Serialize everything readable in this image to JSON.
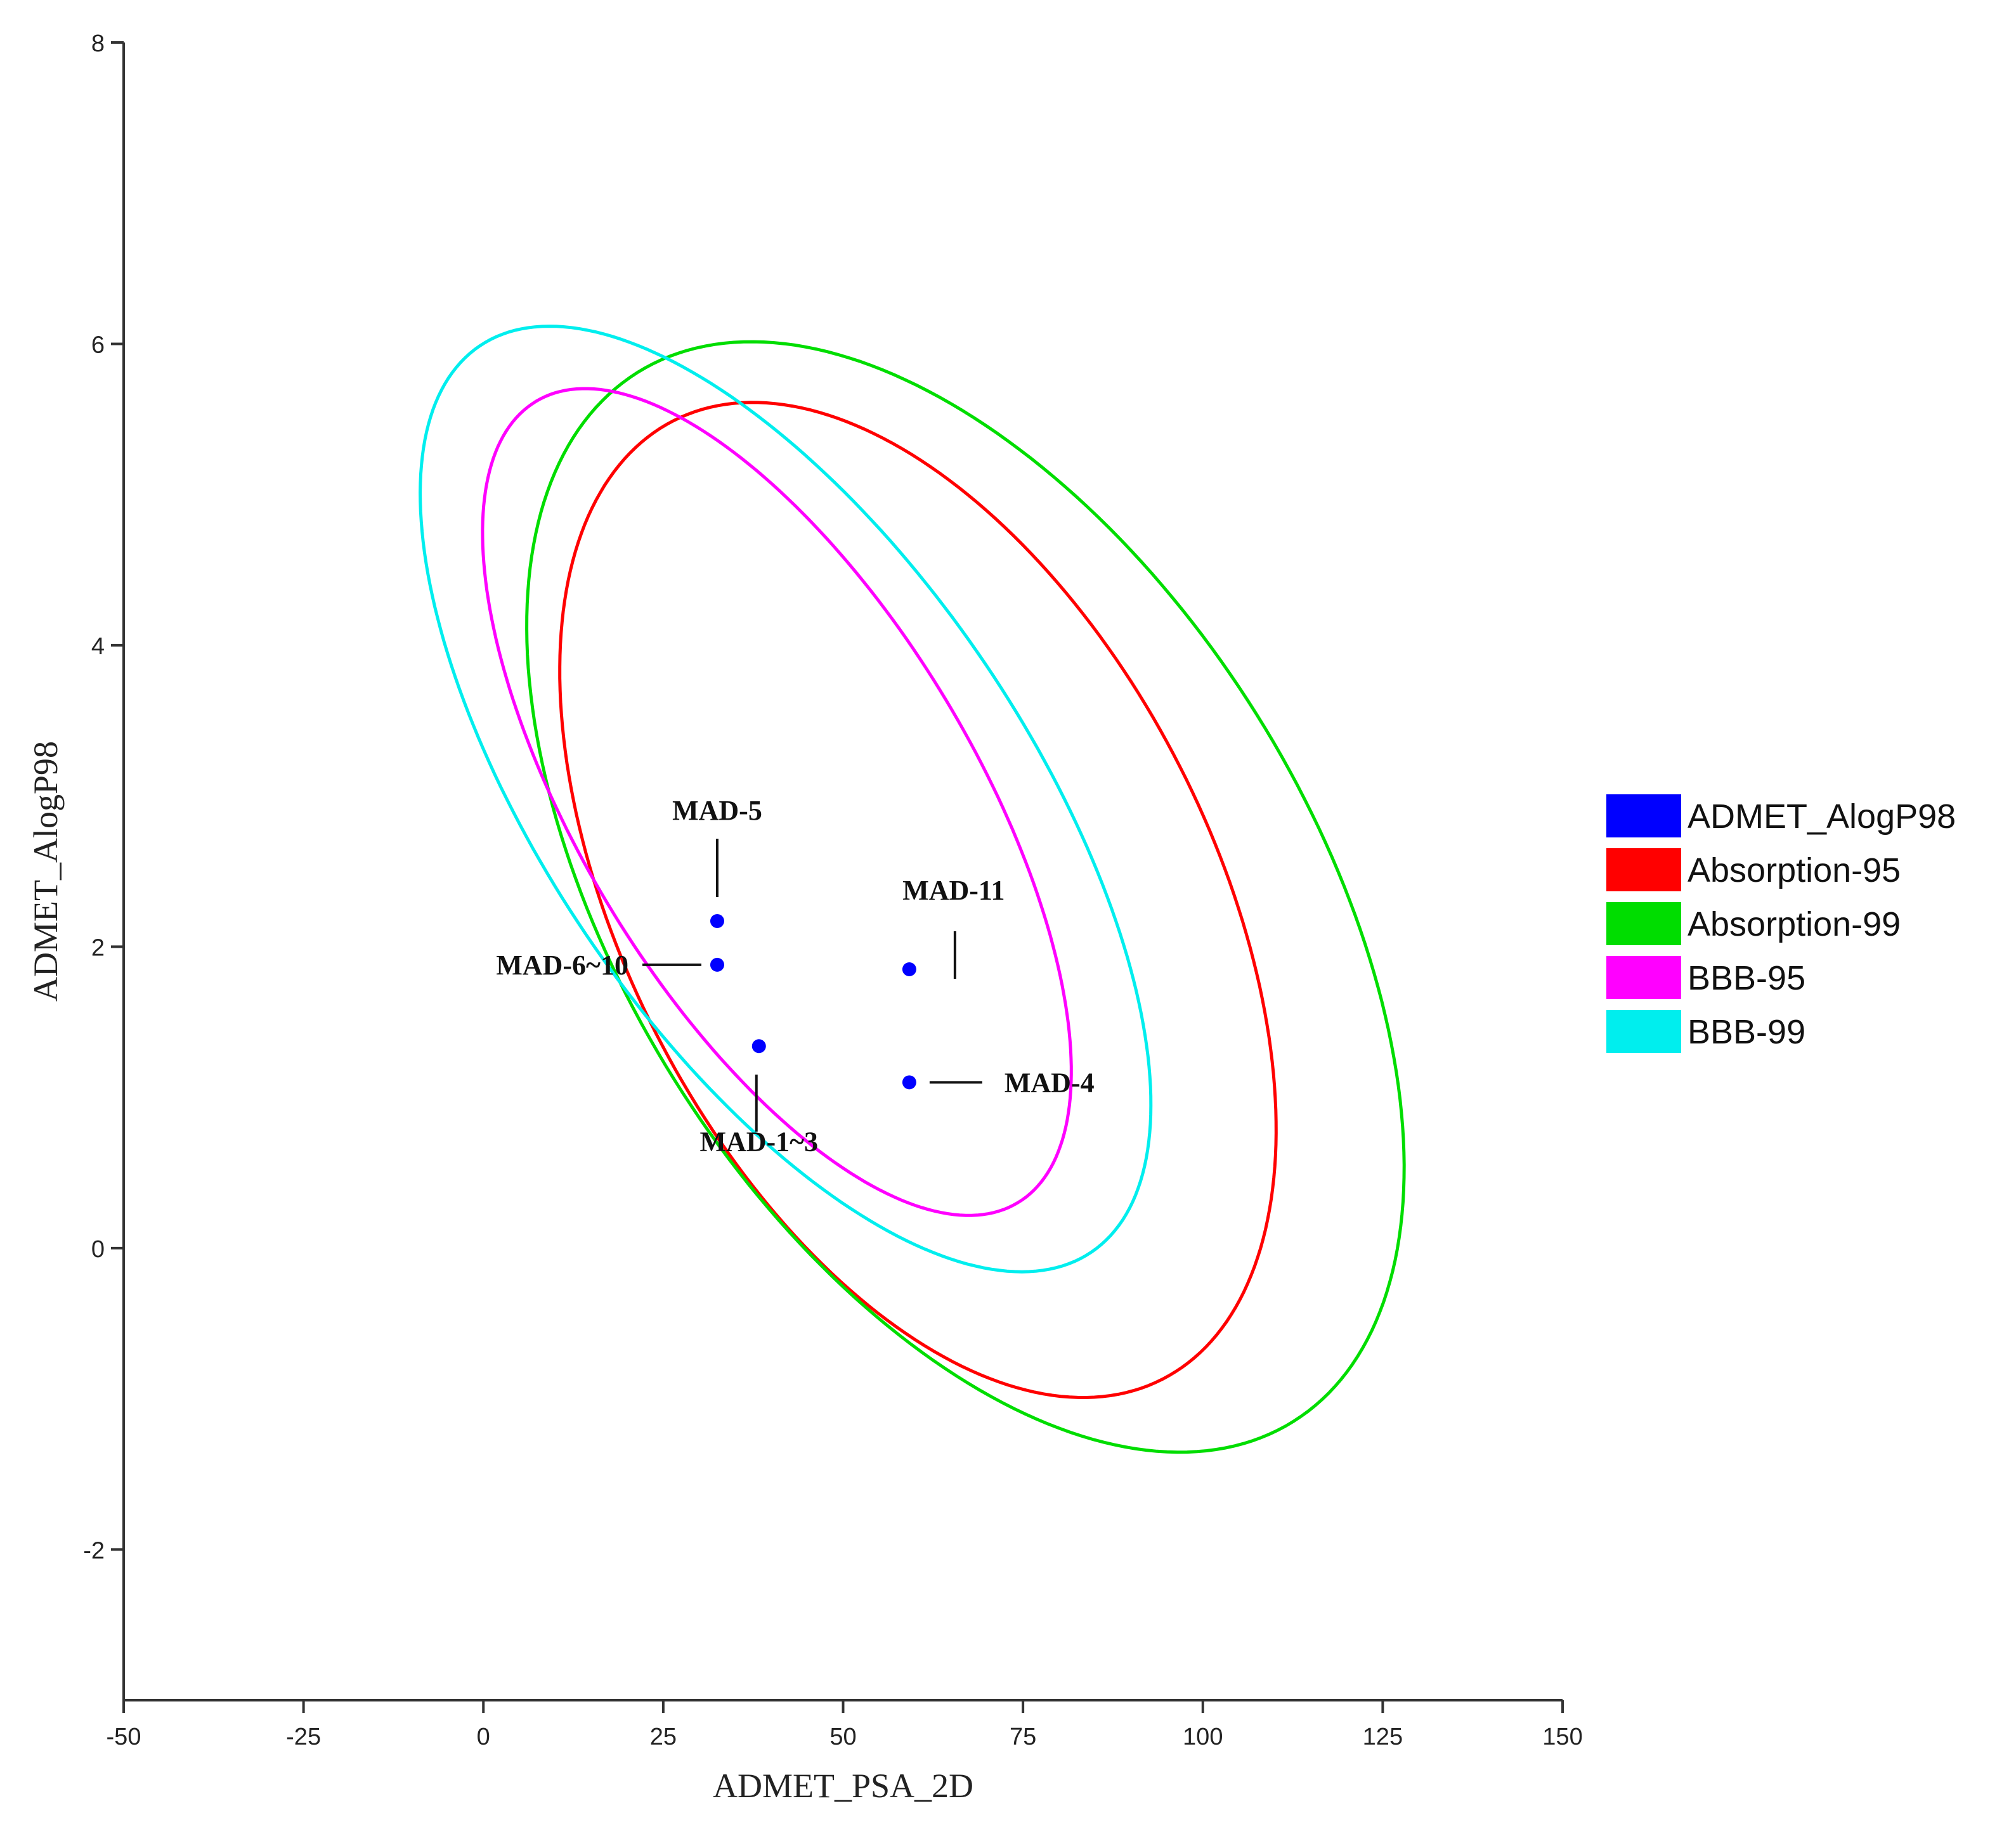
{
  "chart_data": {
    "type": "scatter",
    "xlabel": "ADMET_PSA_2D",
    "ylabel": "ADMET_AlogP98",
    "xlim": [
      -50,
      150
    ],
    "ylim": [
      -3,
      8
    ],
    "xticks": [
      -50,
      -25,
      0,
      25,
      50,
      75,
      100,
      125,
      150
    ],
    "yticks": [
      -2,
      0,
      2,
      4,
      6,
      8
    ],
    "grid": false,
    "legend_position": "right",
    "points": [
      {
        "label": "MAD-5",
        "x": 32.5,
        "y": 2.17
      },
      {
        "label": "MAD-6~10",
        "x": 32.5,
        "y": 1.88
      },
      {
        "label": "MAD-1~3",
        "x": 38.3,
        "y": 1.34
      },
      {
        "label": "MAD-11",
        "x": 59.2,
        "y": 1.85
      },
      {
        "label": "MAD-4",
        "x": 59.2,
        "y": 1.1
      }
    ],
    "ellipses": [
      {
        "name": "Absorption-95",
        "color": "#ff0000",
        "center": [
          60.4,
          2.31
        ],
        "semi_major": 74.8,
        "semi_minor": 1.95,
        "rotation_deg": -63
      },
      {
        "name": "Absorption-99",
        "color": "#00dd00",
        "center": [
          67.0,
          2.33
        ],
        "semi_major": 86.0,
        "semi_minor": 2.28,
        "rotation_deg": -58
      },
      {
        "name": "BBB-95",
        "color": "#ff00ff",
        "center": [
          40.8,
          2.96
        ],
        "semi_major": 65.0,
        "semi_minor": 1.31,
        "rotation_deg": -59
      },
      {
        "name": "BBB-99",
        "color": "#00eeee",
        "center": [
          42.0,
          2.98
        ],
        "semi_major": 76.0,
        "semi_minor": 1.6,
        "rotation_deg": -56
      }
    ],
    "legend": [
      {
        "name": "ADMET_AlogP98",
        "color": "#0000ff"
      },
      {
        "name": "Absorption-95",
        "color": "#ff0000"
      },
      {
        "name": "Absorption-99",
        "color": "#00dd00"
      },
      {
        "name": "BBB-95",
        "color": "#ff00ff"
      },
      {
        "name": "BBB-99",
        "color": "#00eeee"
      }
    ],
    "point_color": "#0000ff"
  }
}
